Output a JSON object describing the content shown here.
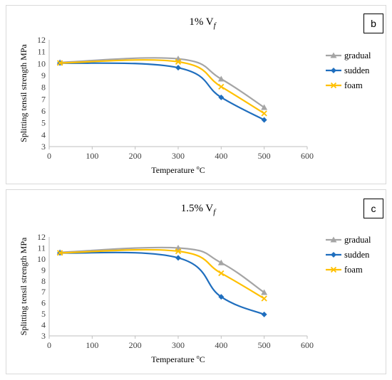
{
  "chart_data": [
    {
      "type": "line",
      "title_main": "1% V",
      "title_sub": "f",
      "badge": "b",
      "xlabel_main": "Temperature ",
      "xlabel_sup": "o",
      "xlabel_end": "C",
      "ylabel": "Splitting tensil strength MPa",
      "xlim": [
        0,
        600
      ],
      "ylim": [
        3,
        12
      ],
      "xticks": [
        0,
        100,
        200,
        300,
        400,
        500,
        600
      ],
      "yticks": [
        3,
        4,
        5,
        6,
        7,
        8,
        9,
        10,
        11,
        12
      ],
      "grid": false,
      "legend_position": "right",
      "x": [
        25,
        300,
        400,
        500
      ],
      "series": [
        {
          "name": "gradual",
          "values": [
            10.1,
            10.4,
            8.7,
            6.3
          ],
          "color": "#a5a5a5",
          "marker": "triangle"
        },
        {
          "name": "sudden",
          "values": [
            10.05,
            9.65,
            7.15,
            5.25
          ],
          "color": "#1f6ebe",
          "marker": "diamond"
        },
        {
          "name": "foam",
          "values": [
            10.05,
            10.15,
            8.05,
            5.8
          ],
          "color": "#ffc000",
          "marker": "x"
        }
      ]
    },
    {
      "type": "line",
      "title_main": "1.5% V",
      "title_sub": "f",
      "badge": "c",
      "xlabel_main": "Temperature ",
      "xlabel_sup": "o",
      "xlabel_end": "C",
      "ylabel": "Splitting tensil strength MPa",
      "xlim": [
        0,
        600
      ],
      "ylim": [
        3,
        12
      ],
      "xticks": [
        0,
        100,
        200,
        300,
        400,
        500,
        600
      ],
      "yticks": [
        3,
        4,
        5,
        6,
        7,
        8,
        9,
        10,
        11,
        12
      ],
      "grid": false,
      "legend_position": "right",
      "x": [
        25,
        300,
        400,
        500
      ],
      "series": [
        {
          "name": "gradual",
          "values": [
            10.6,
            11.0,
            9.65,
            6.95
          ],
          "color": "#a5a5a5",
          "marker": "triangle"
        },
        {
          "name": "sudden",
          "values": [
            10.55,
            10.1,
            6.55,
            4.95
          ],
          "color": "#1f6ebe",
          "marker": "diamond"
        },
        {
          "name": "foam",
          "values": [
            10.55,
            10.7,
            8.7,
            6.4
          ],
          "color": "#ffc000",
          "marker": "x"
        }
      ]
    }
  ]
}
